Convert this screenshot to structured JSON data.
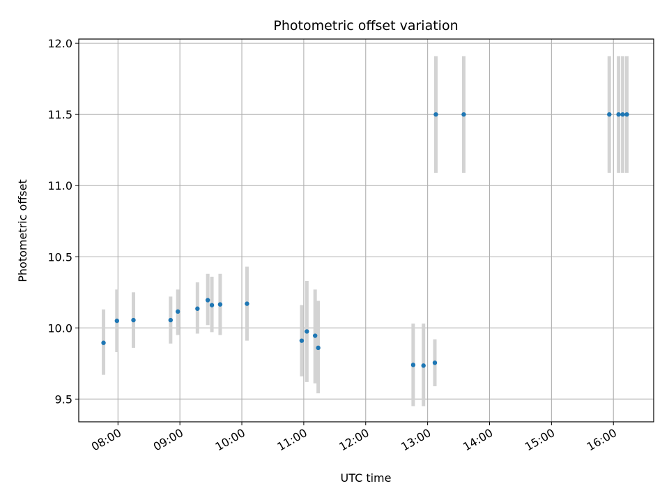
{
  "chart_data": {
    "type": "scatter",
    "title": "Photometric offset variation",
    "xlabel": "UTC time",
    "ylabel": "Photometric offset",
    "grid": true,
    "x_ticks": [
      "08:00",
      "09:00",
      "10:00",
      "11:00",
      "12:00",
      "13:00",
      "14:00",
      "15:00",
      "16:00"
    ],
    "y_ticks": [
      "9.5",
      "10.0",
      "10.5",
      "11.0",
      "11.5",
      "12.0"
    ],
    "xlim": [
      "07:22",
      "16:39"
    ],
    "ylim": [
      9.34,
      12.03
    ],
    "point_color": "#1f77b4",
    "errorbar_color": "#d3d3d3",
    "points": [
      {
        "time": "07:46",
        "value": 9.895,
        "err_low": 9.67,
        "err_high": 10.13
      },
      {
        "time": "07:59",
        "value": 10.05,
        "err_low": 9.83,
        "err_high": 10.27
      },
      {
        "time": "08:15",
        "value": 10.055,
        "err_low": 9.86,
        "err_high": 10.25
      },
      {
        "time": "08:51",
        "value": 10.055,
        "err_low": 9.89,
        "err_high": 10.22
      },
      {
        "time": "08:58",
        "value": 10.115,
        "err_low": 9.95,
        "err_high": 10.27
      },
      {
        "time": "09:17",
        "value": 10.135,
        "err_low": 9.96,
        "err_high": 10.32
      },
      {
        "time": "09:27",
        "value": 10.195,
        "err_low": 10.02,
        "err_high": 10.38
      },
      {
        "time": "09:31",
        "value": 10.16,
        "err_low": 9.97,
        "err_high": 10.36
      },
      {
        "time": "09:39",
        "value": 10.165,
        "err_low": 9.95,
        "err_high": 10.38
      },
      {
        "time": "10:05",
        "value": 10.17,
        "err_low": 9.91,
        "err_high": 10.43
      },
      {
        "time": "10:58",
        "value": 9.91,
        "err_low": 9.66,
        "err_high": 10.16
      },
      {
        "time": "11:03",
        "value": 9.975,
        "err_low": 9.62,
        "err_high": 10.33
      },
      {
        "time": "11:11",
        "value": 9.945,
        "err_low": 9.61,
        "err_high": 10.27
      },
      {
        "time": "11:14",
        "value": 9.86,
        "err_low": 9.54,
        "err_high": 10.19
      },
      {
        "time": "12:46",
        "value": 9.74,
        "err_low": 9.45,
        "err_high": 10.03
      },
      {
        "time": "12:56",
        "value": 9.735,
        "err_low": 9.45,
        "err_high": 10.03
      },
      {
        "time": "13:07",
        "value": 9.755,
        "err_low": 9.59,
        "err_high": 9.92
      },
      {
        "time": "13:08",
        "value": 11.5,
        "err_low": 11.09,
        "err_high": 11.91
      },
      {
        "time": "13:35",
        "value": 11.5,
        "err_low": 11.09,
        "err_high": 11.91
      },
      {
        "time": "15:56",
        "value": 11.5,
        "err_low": 11.09,
        "err_high": 11.91
      },
      {
        "time": "16:05",
        "value": 11.5,
        "err_low": 11.09,
        "err_high": 11.91
      },
      {
        "time": "16:09",
        "value": 11.5,
        "err_low": 11.09,
        "err_high": 11.91
      },
      {
        "time": "16:13",
        "value": 11.5,
        "err_low": 11.09,
        "err_high": 11.91
      }
    ]
  }
}
